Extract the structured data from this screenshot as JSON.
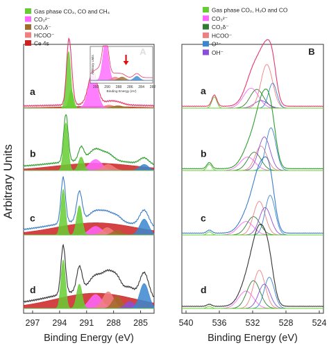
{
  "figure": {
    "ylabel": "Arbitrary Units"
  },
  "chart_data": [
    {
      "type": "line",
      "panel_label": "A",
      "xlabel": "Binding Energy (eV)",
      "ylabel": "Arbitrary Units",
      "x_ticks": [
        297,
        294,
        291,
        288,
        285
      ],
      "xlim": [
        298,
        283.5
      ],
      "x_reversed": true,
      "grid": false,
      "legend": {
        "placement": "top-left",
        "entries": [
          {
            "label": "Gas phase CO₂, CO and CH₄",
            "color": "#66cc33"
          },
          {
            "label": "CO₃²⁻",
            "color": "#ff66ff"
          },
          {
            "label": "CO₂δ⁻",
            "color": "#a26b2c"
          },
          {
            "label": "HCOO⁻",
            "color": "#f08080"
          },
          {
            "label": "Ce 4s",
            "color": "#cc2222"
          }
        ]
      },
      "traces": [
        {
          "label": "a",
          "line_color": "#e8356a",
          "baseline": 0.03,
          "components": [
            {
              "name": "Ce 4s",
              "center": 290.0,
              "width": 4.5,
              "amp": 0.03,
              "color": "#cc2222"
            },
            {
              "name": "Gas phase",
              "center": 293.0,
              "width": 0.25,
              "amp": 0.95,
              "color": "#66cc33"
            },
            {
              "name": "Gas phase",
              "center": 292.7,
              "width": 0.25,
              "amp": 0.3,
              "color": "#66cc33"
            },
            {
              "name": "CO3 2-",
              "center": 290.3,
              "width": 0.5,
              "amp": 0.55,
              "color": "#ff66ff"
            },
            {
              "name": "HCOO-",
              "center": 288.5,
              "width": 0.6,
              "amp": 0.05,
              "color": "#f08080"
            },
            {
              "name": "CO2 d-",
              "center": 287.5,
              "width": 0.6,
              "amp": 0.04,
              "color": "#a26b2c"
            }
          ]
        },
        {
          "label": "b",
          "line_color": "#2e9e2e",
          "baseline": 0.05,
          "components": [
            {
              "name": "Ce 4s",
              "center": 290.0,
              "width": 4.5,
              "amp": 0.12,
              "color": "#cc2222"
            },
            {
              "name": "Gas phase",
              "center": 293.3,
              "width": 0.25,
              "amp": 0.78,
              "color": "#66cc33"
            },
            {
              "name": "Gas phase",
              "center": 291.6,
              "width": 0.3,
              "amp": 0.22,
              "color": "#66cc33"
            },
            {
              "name": "CO3 2-",
              "center": 290.0,
              "width": 0.7,
              "amp": 0.18,
              "color": "#ff66ff"
            },
            {
              "name": "HCOO-",
              "center": 288.6,
              "width": 0.6,
              "amp": 0.1,
              "color": "#f08080"
            },
            {
              "name": "C 1s",
              "center": 284.6,
              "width": 0.5,
              "amp": 0.1,
              "color": "#3a87d0"
            }
          ]
        },
        {
          "label": "c",
          "line_color": "#3a7dc9",
          "baseline": 0.05,
          "components": [
            {
              "name": "Ce 4s",
              "center": 290.0,
              "width": 4.5,
              "amp": 0.2,
              "color": "#cc2222"
            },
            {
              "name": "Gas phase",
              "center": 293.6,
              "width": 0.25,
              "amp": 0.75,
              "color": "#66cc33"
            },
            {
              "name": "Gas phase",
              "center": 291.8,
              "width": 0.3,
              "amp": 0.48,
              "color": "#66cc33"
            },
            {
              "name": "CO3 2-",
              "center": 290.0,
              "width": 0.7,
              "amp": 0.14,
              "color": "#ff66ff"
            },
            {
              "name": "HCOO-",
              "center": 288.7,
              "width": 0.6,
              "amp": 0.12,
              "color": "#f08080"
            },
            {
              "name": "CO2 d-",
              "center": 287.6,
              "width": 0.5,
              "amp": 0.08,
              "color": "#a26b2c"
            },
            {
              "name": "C 1s",
              "center": 284.6,
              "width": 0.5,
              "amp": 0.26,
              "color": "#3a87d0"
            }
          ]
        },
        {
          "label": "d",
          "line_color": "#333333",
          "baseline": 0.05,
          "components": [
            {
              "name": "Ce 4s",
              "center": 290.0,
              "width": 4.5,
              "amp": 0.22,
              "color": "#cc2222"
            },
            {
              "name": "Gas phase",
              "center": 293.6,
              "width": 0.25,
              "amp": 0.7,
              "color": "#66cc33"
            },
            {
              "name": "Gas phase",
              "center": 291.8,
              "width": 0.3,
              "amp": 0.35,
              "color": "#66cc33"
            },
            {
              "name": "CO3 2-",
              "center": 290.0,
              "width": 0.7,
              "amp": 0.2,
              "color": "#ff66ff"
            },
            {
              "name": "HCOO-",
              "center": 288.6,
              "width": 0.6,
              "amp": 0.24,
              "color": "#f08080"
            },
            {
              "name": "CO2 d-",
              "center": 287.6,
              "width": 0.5,
              "amp": 0.18,
              "color": "#a26b2c"
            },
            {
              "name": "OH",
              "center": 286.2,
              "width": 0.5,
              "amp": 0.1,
              "color": "#8a4fd8"
            },
            {
              "name": "C 1s",
              "center": 284.6,
              "width": 0.5,
              "amp": 0.36,
              "color": "#3a87d0"
            }
          ]
        }
      ],
      "inset": {
        "ylabel": "Arbitrary Units",
        "xlabel": "Binding Energy (eV)",
        "x_ticks": [
          292,
          290,
          288,
          286,
          284,
          282
        ],
        "xlim": [
          293,
          282
        ]
      }
    },
    {
      "type": "line",
      "panel_label": "B",
      "xlabel": "Binding Energy (eV)",
      "ylabel": "",
      "x_ticks": [
        540,
        536,
        532,
        528,
        524
      ],
      "xlim": [
        540.5,
        523.5
      ],
      "x_reversed": true,
      "grid": false,
      "legend": {
        "placement": "top-left",
        "entries": [
          {
            "label": "Gas phase CO₂, H₂O and CO",
            "color": "#66cc33"
          },
          {
            "label": "CO₃²⁻",
            "color": "#ff66ff"
          },
          {
            "label": "CO₂δ⁻",
            "color": "#2e7d32"
          },
          {
            "label": "HCOO⁻",
            "color": "#f08080"
          },
          {
            "label": "O²⁻",
            "color": "#3a87d0"
          },
          {
            "label": "OH⁻",
            "color": "#8a4fd8"
          }
        ]
      },
      "traces": [
        {
          "label": "a",
          "line_color": "#e8356a",
          "baseline": 0.03,
          "components": [
            {
              "name": "Gas phase",
              "center": 536.6,
              "width": 0.3,
              "amp": 0.18,
              "color": "#66cc33"
            },
            {
              "name": "CO3 2-",
              "center": 532.2,
              "width": 0.9,
              "amp": 0.32,
              "color": "#ff66ff"
            },
            {
              "name": "CO2 d-",
              "center": 531.5,
              "width": 0.8,
              "amp": 0.3,
              "color": "#2e7d32"
            },
            {
              "name": "HCOO-",
              "center": 530.3,
              "width": 0.7,
              "amp": 0.7,
              "color": "#f08080"
            },
            {
              "name": "O2-",
              "center": 529.6,
              "width": 0.5,
              "amp": 0.4,
              "color": "#3a87d0"
            },
            {
              "name": "OH-",
              "center": 531.0,
              "width": 0.8,
              "amp": 0.12,
              "color": "#8a4fd8"
            }
          ]
        },
        {
          "label": "b",
          "line_color": "#2e9e2e",
          "baseline": 0.03,
          "components": [
            {
              "name": "Gas phase",
              "center": 537.2,
              "width": 0.3,
              "amp": 0.1,
              "color": "#66cc33"
            },
            {
              "name": "CO3 2-",
              "center": 532.6,
              "width": 0.9,
              "amp": 0.22,
              "color": "#ff66ff"
            },
            {
              "name": "CO2 d-",
              "center": 531.8,
              "width": 0.8,
              "amp": 0.3,
              "color": "#2e7d32"
            },
            {
              "name": "HCOO-",
              "center": 531.0,
              "width": 0.7,
              "amp": 0.4,
              "color": "#f08080"
            },
            {
              "name": "O2-",
              "center": 529.8,
              "width": 0.6,
              "amp": 0.7,
              "color": "#3a87d0"
            },
            {
              "name": "OH-",
              "center": 530.6,
              "width": 0.7,
              "amp": 0.55,
              "color": "#8a4fd8"
            }
          ]
        },
        {
          "label": "c",
          "line_color": "#3a7dc9",
          "baseline": 0.03,
          "components": [
            {
              "name": "Gas phase",
              "center": 537.2,
              "width": 0.3,
              "amp": 0.05,
              "color": "#66cc33"
            },
            {
              "name": "CO3 2-",
              "center": 532.8,
              "width": 0.9,
              "amp": 0.22,
              "color": "#ff66ff"
            },
            {
              "name": "CO2 d-",
              "center": 531.9,
              "width": 0.8,
              "amp": 0.3,
              "color": "#2e7d32"
            },
            {
              "name": "HCOO-",
              "center": 531.2,
              "width": 0.7,
              "amp": 0.55,
              "color": "#f08080"
            },
            {
              "name": "O2-",
              "center": 529.9,
              "width": 0.6,
              "amp": 0.65,
              "color": "#3a87d0"
            },
            {
              "name": "OH-",
              "center": 530.5,
              "width": 0.7,
              "amp": 0.45,
              "color": "#8a4fd8"
            }
          ]
        },
        {
          "label": "d",
          "line_color": "#333333",
          "baseline": 0.03,
          "components": [
            {
              "name": "Gas phase",
              "center": 537.2,
              "width": 0.3,
              "amp": 0.03,
              "color": "#66cc33"
            },
            {
              "name": "CO3 2-",
              "center": 532.8,
              "width": 0.9,
              "amp": 0.25,
              "color": "#ff66ff"
            },
            {
              "name": "CO2 d-",
              "center": 531.9,
              "width": 0.8,
              "amp": 0.4,
              "color": "#2e7d32"
            },
            {
              "name": "HCOO-",
              "center": 531.2,
              "width": 0.7,
              "amp": 0.55,
              "color": "#f08080"
            },
            {
              "name": "O2-",
              "center": 530.0,
              "width": 0.6,
              "amp": 0.45,
              "color": "#3a87d0"
            },
            {
              "name": "OH-",
              "center": 530.6,
              "width": 0.7,
              "amp": 0.35,
              "color": "#8a4fd8"
            }
          ]
        }
      ]
    }
  ]
}
